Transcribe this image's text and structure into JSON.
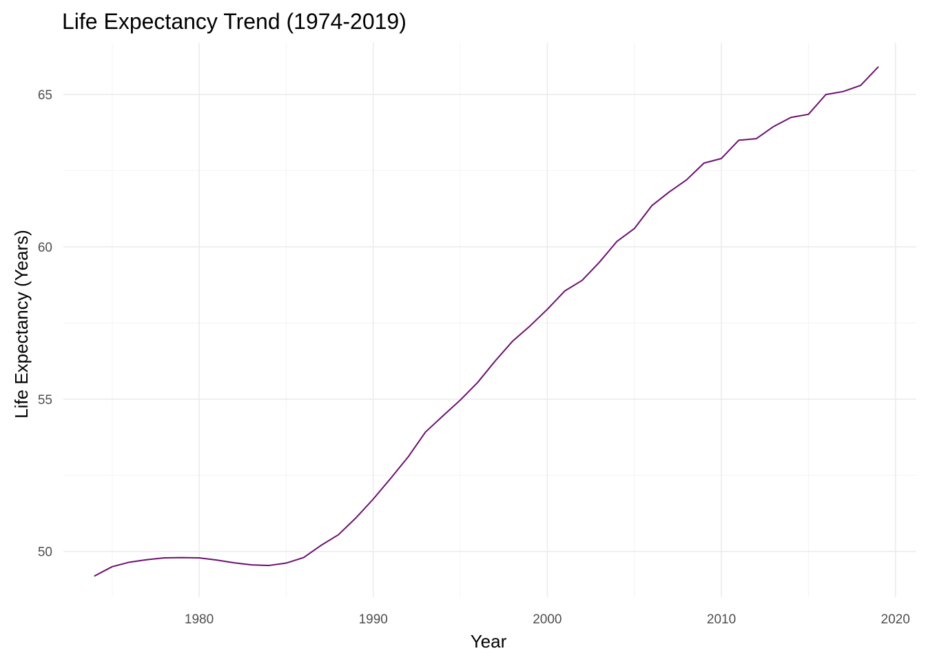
{
  "chart_data": {
    "type": "line",
    "title": "Life Expectancy Trend (1974-2019)",
    "xlabel": "Year",
    "ylabel": "Life Expectancy (Years)",
    "xlim": [
      1972.2,
      2021.2
    ],
    "ylim": [
      48.5,
      66.7
    ],
    "x_ticks": [
      1980,
      1990,
      2000,
      2010,
      2020
    ],
    "x_minor_ticks": [
      1975,
      1985,
      1995,
      2005,
      2015
    ],
    "y_ticks": [
      50,
      55,
      60,
      65
    ],
    "y_minor_ticks": [
      52.5,
      57.5,
      62.5
    ],
    "grid": true,
    "line_color": "#6a0f6e",
    "series": [
      {
        "x": [
          1974,
          1975,
          1976,
          1977,
          1978,
          1979,
          1980,
          1981,
          1982,
          1983,
          1984,
          1985,
          1986,
          1987,
          1988,
          1989,
          1990,
          1991,
          1992,
          1993,
          1994,
          1995,
          1996,
          1997,
          1998,
          1999,
          2000,
          2001,
          2002,
          2003,
          2004,
          2005,
          2006,
          2007,
          2008,
          2009,
          2010,
          2011,
          2012,
          2013,
          2014,
          2015,
          2016,
          2017,
          2018,
          2019
        ],
        "values": [
          49.2,
          49.5,
          49.65,
          49.73,
          49.79,
          49.8,
          49.79,
          49.72,
          49.63,
          49.56,
          49.54,
          49.62,
          49.8,
          50.2,
          50.55,
          51.1,
          51.72,
          52.4,
          53.1,
          53.92,
          54.45,
          54.97,
          55.55,
          56.25,
          56.9,
          57.4,
          57.95,
          58.55,
          58.9,
          59.5,
          60.18,
          60.6,
          61.35,
          61.8,
          62.2,
          62.75,
          62.9,
          63.5,
          63.55,
          63.95,
          64.25,
          64.35,
          65.0,
          65.1,
          65.3,
          65.9
        ]
      }
    ]
  }
}
